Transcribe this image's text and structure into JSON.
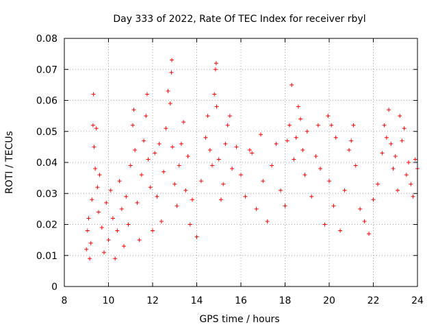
{
  "chart_data": {
    "type": "scatter",
    "title": "Day 333 of 2022, Rate Of TEC Index for receiver rbyl",
    "xlabel": "GPS time / hours",
    "ylabel": "ROTI / TECUs",
    "xlim": [
      8,
      24
    ],
    "ylim": [
      0,
      0.08
    ],
    "x_ticks": [
      8,
      10,
      12,
      14,
      16,
      18,
      20,
      22,
      24
    ],
    "x_tick_labels": [
      "8",
      "10",
      "12",
      "14",
      "16",
      "18",
      "20",
      "22",
      "24"
    ],
    "y_ticks": [
      0,
      0.01,
      0.02,
      0.03,
      0.04,
      0.05,
      0.06,
      0.07,
      0.08
    ],
    "y_tick_labels": [
      "0",
      "0.01",
      "0.02",
      "0.03",
      "0.04",
      "0.05",
      "0.06",
      "0.07",
      "0.08"
    ],
    "grid": true,
    "marker": "+",
    "color": "#ff0000",
    "series": [
      {
        "name": "ROTI",
        "points": [
          [
            9.0,
            0.012
          ],
          [
            9.05,
            0.018
          ],
          [
            9.1,
            0.022
          ],
          [
            9.15,
            0.009
          ],
          [
            9.2,
            0.014
          ],
          [
            9.25,
            0.028
          ],
          [
            9.3,
            0.052
          ],
          [
            9.32,
            0.062
          ],
          [
            9.35,
            0.045
          ],
          [
            9.4,
            0.038
          ],
          [
            9.45,
            0.051
          ],
          [
            9.5,
            0.032
          ],
          [
            9.55,
            0.024
          ],
          [
            9.6,
            0.036
          ],
          [
            9.7,
            0.019
          ],
          [
            9.8,
            0.011
          ],
          [
            9.9,
            0.027
          ],
          [
            10.0,
            0.015
          ],
          [
            10.1,
            0.031
          ],
          [
            10.2,
            0.022
          ],
          [
            10.3,
            0.009
          ],
          [
            10.4,
            0.018
          ],
          [
            10.5,
            0.034
          ],
          [
            10.6,
            0.025
          ],
          [
            10.7,
            0.013
          ],
          [
            10.8,
            0.029
          ],
          [
            10.9,
            0.02
          ],
          [
            11.0,
            0.039
          ],
          [
            11.1,
            0.052
          ],
          [
            11.15,
            0.057
          ],
          [
            11.2,
            0.044
          ],
          [
            11.3,
            0.027
          ],
          [
            11.4,
            0.015
          ],
          [
            11.5,
            0.036
          ],
          [
            11.6,
            0.047
          ],
          [
            11.7,
            0.055
          ],
          [
            11.75,
            0.062
          ],
          [
            11.8,
            0.041
          ],
          [
            11.9,
            0.032
          ],
          [
            12.0,
            0.018
          ],
          [
            12.1,
            0.043
          ],
          [
            12.2,
            0.029
          ],
          [
            12.3,
            0.046
          ],
          [
            12.4,
            0.021
          ],
          [
            12.5,
            0.037
          ],
          [
            12.6,
            0.051
          ],
          [
            12.7,
            0.063
          ],
          [
            12.8,
            0.059
          ],
          [
            12.85,
            0.069
          ],
          [
            12.87,
            0.073
          ],
          [
            12.9,
            0.045
          ],
          [
            13.0,
            0.033
          ],
          [
            13.1,
            0.026
          ],
          [
            13.2,
            0.039
          ],
          [
            13.3,
            0.046
          ],
          [
            13.4,
            0.053
          ],
          [
            13.5,
            0.031
          ],
          [
            13.6,
            0.042
          ],
          [
            13.7,
            0.02
          ],
          [
            13.8,
            0.028
          ],
          [
            14.0,
            0.016
          ],
          [
            14.2,
            0.034
          ],
          [
            14.4,
            0.048
          ],
          [
            14.5,
            0.055
          ],
          [
            14.6,
            0.044
          ],
          [
            14.7,
            0.039
          ],
          [
            14.8,
            0.062
          ],
          [
            14.85,
            0.07
          ],
          [
            14.88,
            0.072
          ],
          [
            14.9,
            0.058
          ],
          [
            15.0,
            0.041
          ],
          [
            15.1,
            0.028
          ],
          [
            15.2,
            0.033
          ],
          [
            15.3,
            0.046
          ],
          [
            15.4,
            0.052
          ],
          [
            15.5,
            0.055
          ],
          [
            15.6,
            0.038
          ],
          [
            15.8,
            0.045
          ],
          [
            16.0,
            0.036
          ],
          [
            16.2,
            0.029
          ],
          [
            16.4,
            0.044
          ],
          [
            16.5,
            0.043
          ],
          [
            16.7,
            0.025
          ],
          [
            16.9,
            0.049
          ],
          [
            17.0,
            0.034
          ],
          [
            17.2,
            0.021
          ],
          [
            17.4,
            0.039
          ],
          [
            17.6,
            0.046
          ],
          [
            17.8,
            0.031
          ],
          [
            18.0,
            0.026
          ],
          [
            18.1,
            0.047
          ],
          [
            18.2,
            0.052
          ],
          [
            18.3,
            0.065
          ],
          [
            18.4,
            0.041
          ],
          [
            18.5,
            0.048
          ],
          [
            18.6,
            0.058
          ],
          [
            18.7,
            0.054
          ],
          [
            18.8,
            0.044
          ],
          [
            18.9,
            0.036
          ],
          [
            19.0,
            0.05
          ],
          [
            19.2,
            0.029
          ],
          [
            19.4,
            0.042
          ],
          [
            19.5,
            0.052
          ],
          [
            19.6,
            0.038
          ],
          [
            19.8,
            0.02
          ],
          [
            19.95,
            0.055
          ],
          [
            20.0,
            0.034
          ],
          [
            20.1,
            0.052
          ],
          [
            20.2,
            0.026
          ],
          [
            20.3,
            0.048
          ],
          [
            20.5,
            0.018
          ],
          [
            20.7,
            0.031
          ],
          [
            20.9,
            0.044
          ],
          [
            21.0,
            0.047
          ],
          [
            21.1,
            0.052
          ],
          [
            21.2,
            0.039
          ],
          [
            21.4,
            0.025
          ],
          [
            21.6,
            0.021
          ],
          [
            21.8,
            0.017
          ],
          [
            22.0,
            0.028
          ],
          [
            22.2,
            0.033
          ],
          [
            22.4,
            0.043
          ],
          [
            22.5,
            0.052
          ],
          [
            22.6,
            0.048
          ],
          [
            22.7,
            0.057
          ],
          [
            22.8,
            0.046
          ],
          [
            22.9,
            0.038
          ],
          [
            23.0,
            0.042
          ],
          [
            23.1,
            0.031
          ],
          [
            23.2,
            0.055
          ],
          [
            23.3,
            0.047
          ],
          [
            23.4,
            0.051
          ],
          [
            23.5,
            0.036
          ],
          [
            23.6,
            0.04
          ],
          [
            23.7,
            0.033
          ],
          [
            23.8,
            0.029
          ],
          [
            23.9,
            0.041
          ],
          [
            24.0,
            0.038
          ]
        ]
      }
    ]
  }
}
